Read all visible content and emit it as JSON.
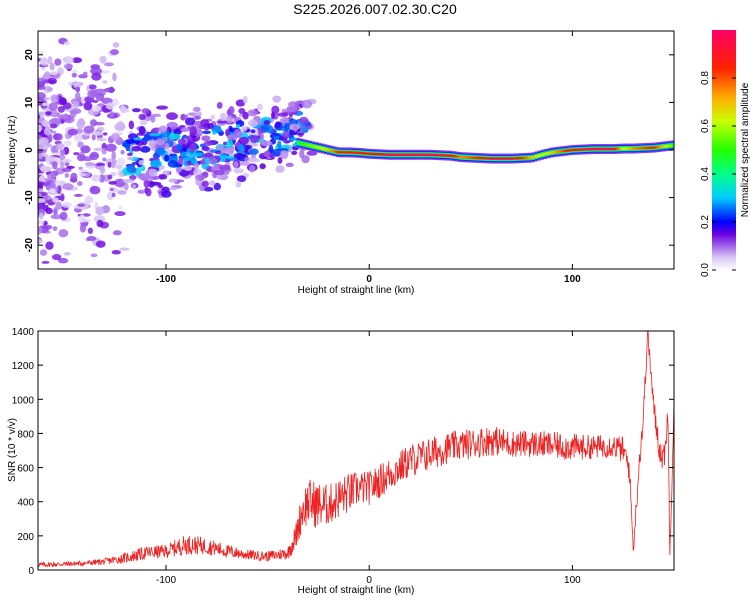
{
  "figure_title": "S225.2026.007.02.30.C20",
  "chart_data": [
    {
      "type": "heatmap",
      "xlabel": "Height of straight line (km)",
      "ylabel": "Frequency (Hz)",
      "xlim": [
        -163,
        150
      ],
      "ylim": [
        -25,
        25
      ],
      "x_ticks": [
        -100,
        0,
        100
      ],
      "x_tick_labels": [
        "-100",
        "0",
        "100"
      ],
      "y_ticks": [
        -20,
        -10,
        0,
        10,
        20
      ],
      "y_tick_labels": [
        "-20",
        "-10",
        "0",
        "10",
        "20"
      ],
      "colorbar": {
        "label": "Normalized spectral amplitude",
        "range": [
          0.0,
          1.0
        ],
        "ticks": [
          0.0,
          0.2,
          0.4,
          0.6,
          0.8
        ],
        "tick_labels": [
          "0.0",
          "0.2",
          "0.4",
          "0.6",
          "0.8"
        ]
      },
      "ridge": {
        "description": "dominant frequency track",
        "x": [
          -35,
          -30,
          -25,
          -20,
          -15,
          -10,
          -5,
          0,
          5,
          10,
          20,
          30,
          40,
          45,
          50,
          60,
          70,
          80,
          85,
          90,
          100,
          110,
          120,
          125,
          130,
          140,
          150
        ],
        "freq": [
          1.5,
          1.0,
          0.5,
          0.0,
          -0.5,
          -0.5,
          -0.6,
          -0.8,
          -0.9,
          -1.0,
          -1.0,
          -1.0,
          -1.2,
          -1.5,
          -1.6,
          -1.8,
          -1.8,
          -1.6,
          -1.0,
          -0.5,
          0.0,
          0.2,
          0.2,
          0.3,
          0.3,
          0.5,
          1.0
        ],
        "amplitude": [
          0.45,
          0.55,
          0.6,
          0.7,
          0.85,
          0.9,
          0.85,
          0.9,
          0.95,
          0.95,
          0.95,
          0.95,
          0.9,
          0.75,
          0.8,
          0.95,
          0.95,
          0.7,
          0.6,
          0.7,
          0.9,
          0.95,
          0.95,
          0.6,
          0.75,
          0.85,
          0.5
        ]
      }
    },
    {
      "type": "line",
      "xlabel": "Height of straight line (km)",
      "ylabel": "SNR (10 * v/v)",
      "xlim": [
        -163,
        150
      ],
      "ylim": [
        0,
        1400
      ],
      "x_ticks": [
        -100,
        0,
        100
      ],
      "x_tick_labels": [
        "-100",
        "0",
        "100"
      ],
      "y_ticks": [
        0,
        200,
        400,
        600,
        800,
        1000,
        1200,
        1400
      ],
      "y_tick_labels": [
        "0",
        "200",
        "400",
        "600",
        "800",
        "1000",
        "1200",
        "1400"
      ],
      "series_color": "#ee2222",
      "x": [
        -163,
        -150,
        -140,
        -130,
        -120,
        -110,
        -100,
        -90,
        -80,
        -70,
        -60,
        -50,
        -40,
        -36,
        -33,
        -30,
        -25,
        -20,
        -15,
        -10,
        -5,
        0,
        10,
        20,
        30,
        40,
        50,
        60,
        70,
        80,
        90,
        100,
        110,
        120,
        125,
        128,
        130,
        133,
        135,
        137,
        140,
        143,
        145,
        147,
        148,
        150
      ],
      "snr": [
        30,
        35,
        40,
        50,
        70,
        100,
        110,
        150,
        140,
        110,
        90,
        80,
        100,
        200,
        350,
        400,
        380,
        380,
        420,
        450,
        480,
        480,
        560,
        640,
        680,
        720,
        740,
        760,
        740,
        740,
        730,
        720,
        720,
        730,
        700,
        600,
        120,
        650,
        900,
        1400,
        950,
        700,
        650,
        900,
        100,
        1000
      ],
      "noise_amplitude": [
        15,
        15,
        15,
        20,
        30,
        40,
        40,
        60,
        50,
        40,
        30,
        30,
        40,
        80,
        120,
        140,
        140,
        120,
        120,
        120,
        100,
        100,
        100,
        100,
        100,
        90,
        90,
        90,
        80,
        80,
        80,
        80,
        70,
        70,
        80,
        80,
        40,
        80,
        80,
        50,
        80,
        80,
        80,
        80,
        50,
        80
      ]
    }
  ]
}
